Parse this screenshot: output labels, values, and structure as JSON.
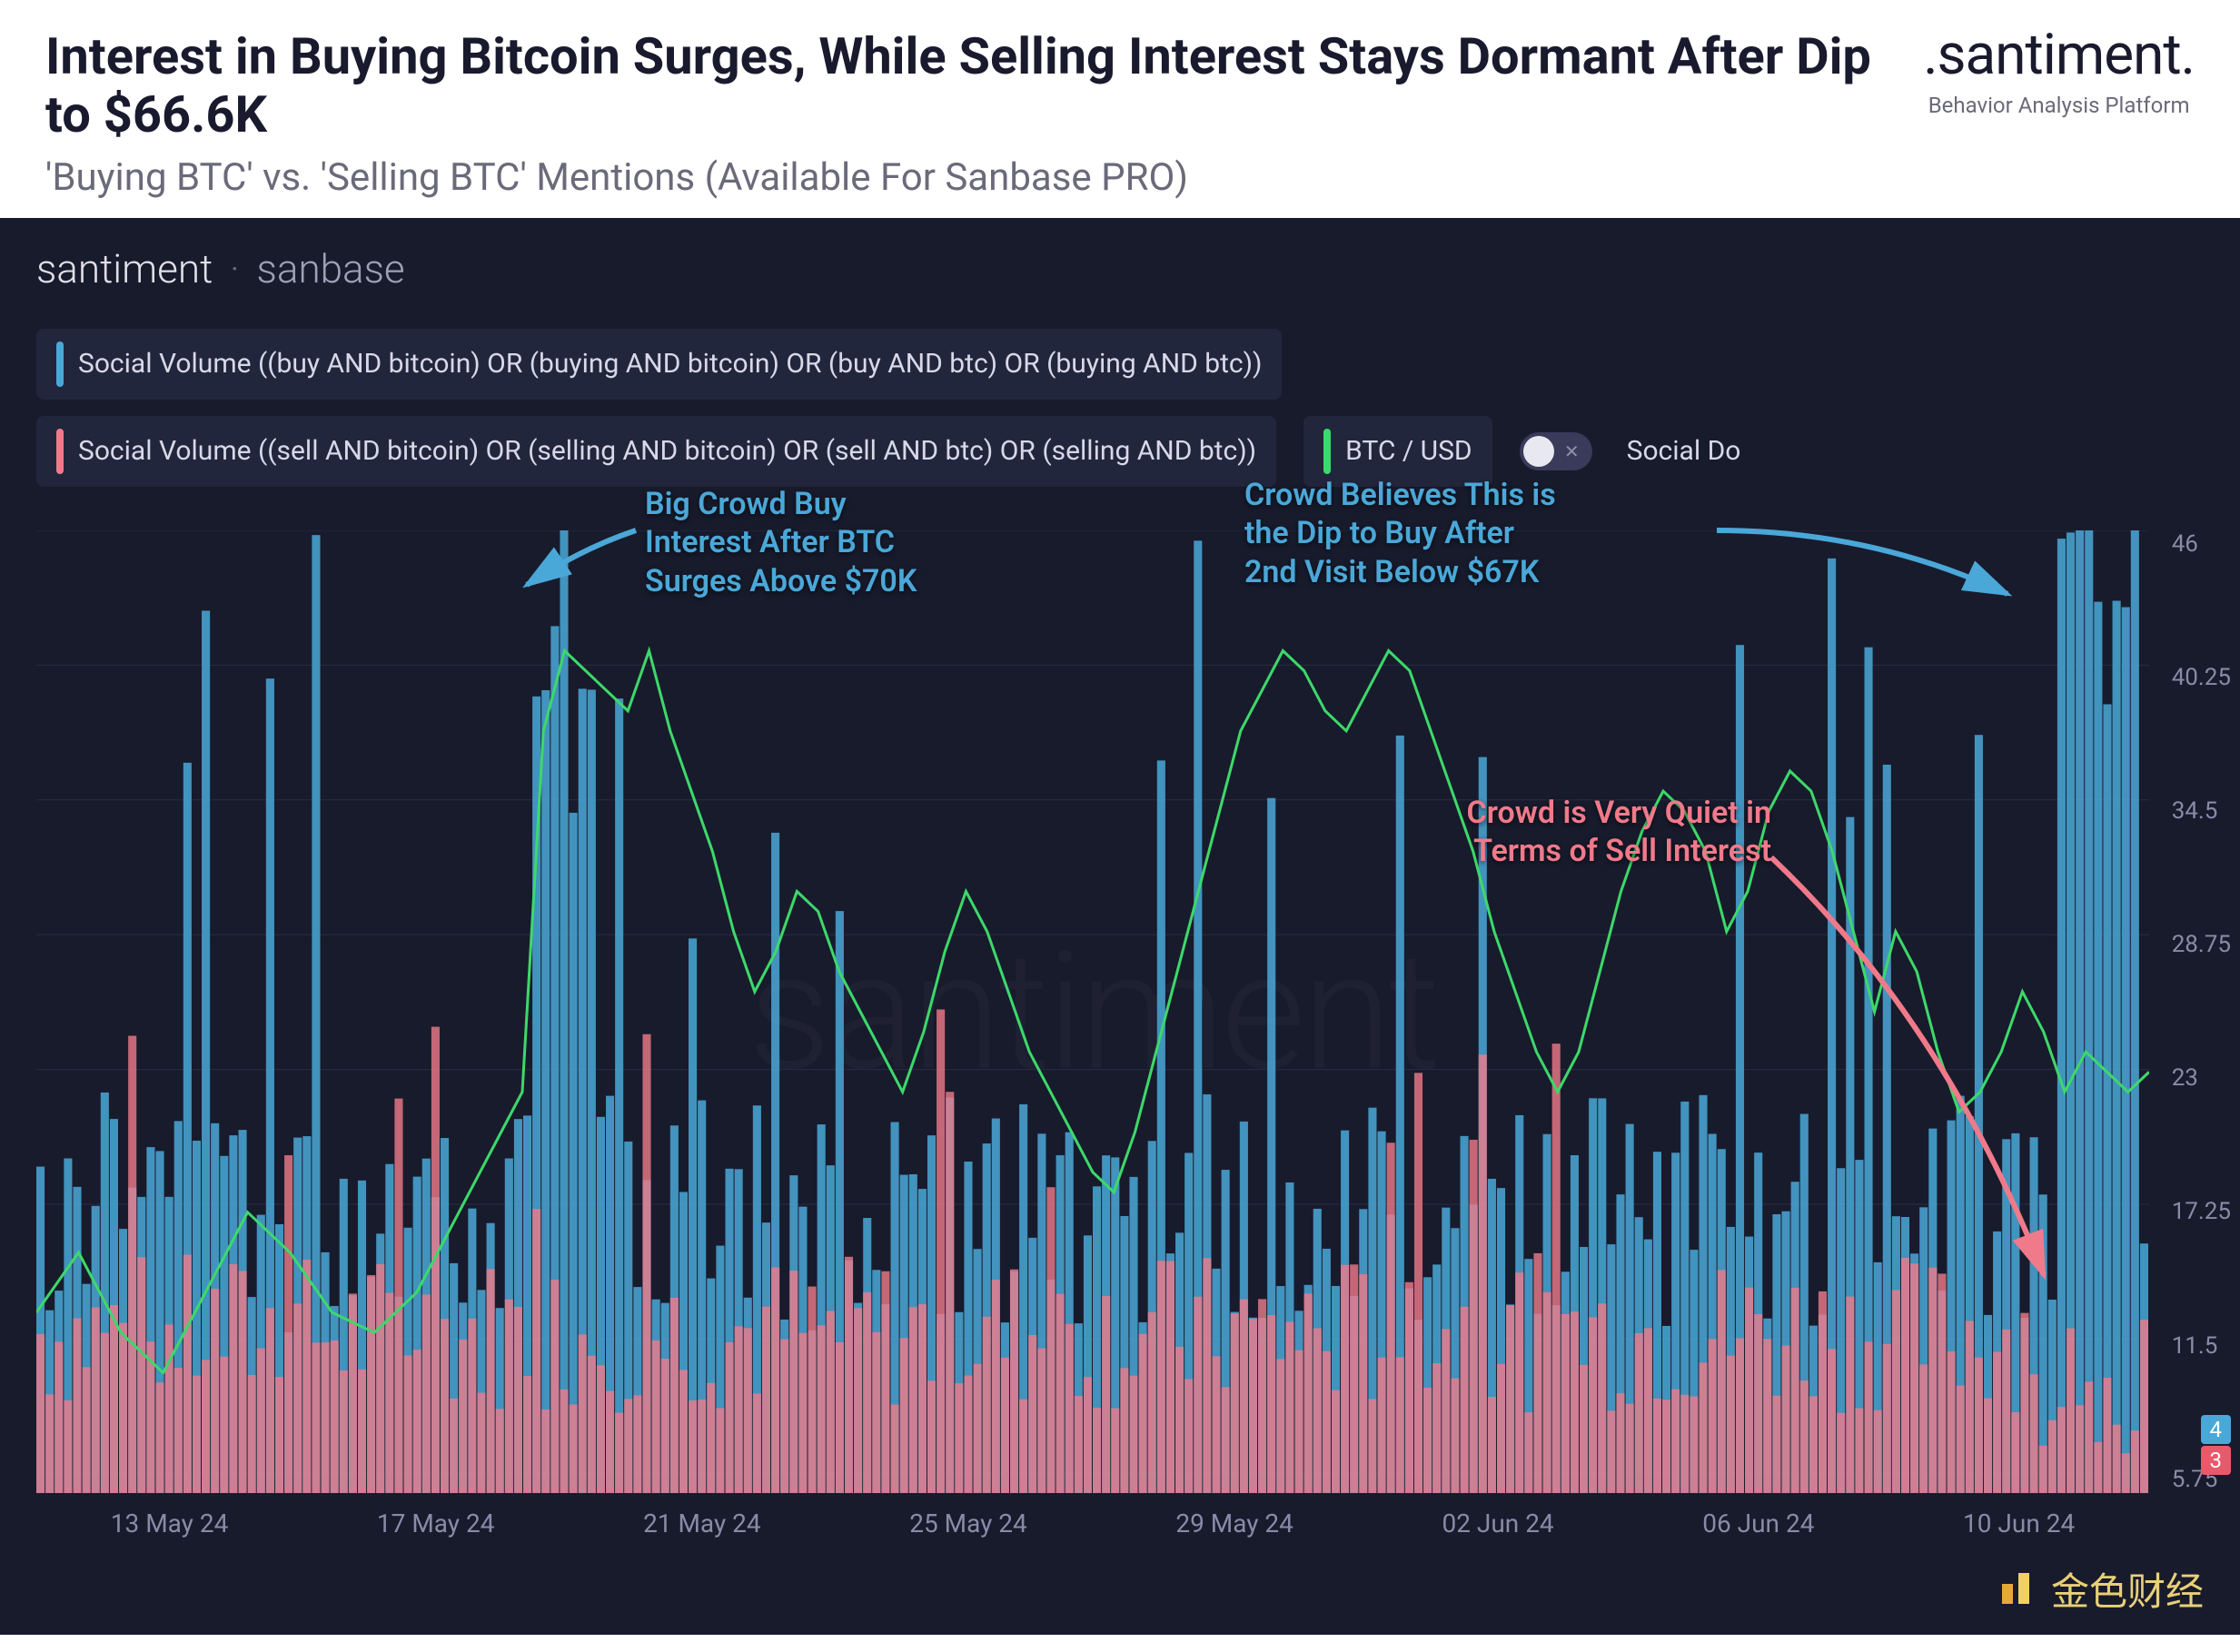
{
  "header": {
    "title": "Interest in Buying Bitcoin Surges, While Selling Interest Stays Dormant After Dip to $66.6K",
    "subtitle": "'Buying BTC' vs. 'Selling BTC' Mentions (Available For Sanbase PRO)",
    "logo": ".santiment.",
    "logo_sub": "Behavior Analysis Platform"
  },
  "chart_header": {
    "brand": "santiment",
    "brand_sub": "sanbase"
  },
  "legend": {
    "buy": {
      "label": "Social Volume ((buy AND bitcoin) OR (buying AND bitcoin) OR (buy AND btc) OR (buying AND btc))",
      "color": "#4aa8d8"
    },
    "sell": {
      "label": "Social Volume ((sell AND bitcoin) OR (selling AND bitcoin) OR (sell AND btc) OR (selling AND btc))",
      "color": "#f07a8a"
    },
    "price": {
      "label": "BTC / USD",
      "color": "#3dd86a"
    },
    "toggle_label": "Social Do"
  },
  "annotations": {
    "anno1": "Big Crowd Buy\nInterest After BTC\nSurges Above $70K",
    "anno2": "Crowd Believes This is\nthe Dip to Buy After\n2nd Visit Below $67K",
    "anno3": "Crowd is Very Quiet in\nTerms of Sell Interest"
  },
  "chart": {
    "type": "bar+line",
    "background_color": "#181b2c",
    "grid_color": "#2a2d42",
    "y_axis": {
      "ticks": [
        "46",
        "40.25",
        "34.5",
        "28.75",
        "23",
        "17.25",
        "11.5",
        "5.75"
      ],
      "badge_buy": "4",
      "badge_sell": "3",
      "ylim": [
        0,
        48
      ]
    },
    "x_axis": {
      "labels": [
        "13 May 24",
        "17 May 24",
        "21 May 24",
        "25 May 24",
        "29 May 24",
        "02 Jun 24",
        "06 Jun 24",
        "10 Jun 24"
      ]
    },
    "price_line": {
      "color": "#3dd86a",
      "width": 3,
      "points": [
        [
          0,
          9
        ],
        [
          2,
          12
        ],
        [
          4,
          8
        ],
        [
          6,
          6
        ],
        [
          8,
          10
        ],
        [
          10,
          14
        ],
        [
          12,
          12
        ],
        [
          14,
          9
        ],
        [
          16,
          8
        ],
        [
          18,
          10
        ],
        [
          20,
          14
        ],
        [
          22,
          18
        ],
        [
          23,
          20
        ],
        [
          24,
          38
        ],
        [
          25,
          42
        ],
        [
          26,
          41
        ],
        [
          27,
          40
        ],
        [
          28,
          39
        ],
        [
          29,
          42
        ],
        [
          30,
          38
        ],
        [
          31,
          35
        ],
        [
          32,
          32
        ],
        [
          33,
          28
        ],
        [
          34,
          25
        ],
        [
          35,
          27
        ],
        [
          36,
          30
        ],
        [
          37,
          29
        ],
        [
          38,
          26
        ],
        [
          39,
          24
        ],
        [
          40,
          22
        ],
        [
          41,
          20
        ],
        [
          42,
          23
        ],
        [
          43,
          27
        ],
        [
          44,
          30
        ],
        [
          45,
          28
        ],
        [
          46,
          25
        ],
        [
          47,
          22
        ],
        [
          48,
          20
        ],
        [
          49,
          18
        ],
        [
          50,
          16
        ],
        [
          51,
          15
        ],
        [
          52,
          18
        ],
        [
          53,
          22
        ],
        [
          54,
          26
        ],
        [
          55,
          30
        ],
        [
          56,
          34
        ],
        [
          57,
          38
        ],
        [
          58,
          40
        ],
        [
          59,
          42
        ],
        [
          60,
          41
        ],
        [
          61,
          39
        ],
        [
          62,
          38
        ],
        [
          63,
          40
        ],
        [
          64,
          42
        ],
        [
          65,
          41
        ],
        [
          66,
          38
        ],
        [
          67,
          35
        ],
        [
          68,
          32
        ],
        [
          69,
          28
        ],
        [
          70,
          25
        ],
        [
          71,
          22
        ],
        [
          72,
          20
        ],
        [
          73,
          22
        ],
        [
          74,
          26
        ],
        [
          75,
          30
        ],
        [
          76,
          33
        ],
        [
          77,
          35
        ],
        [
          78,
          34
        ],
        [
          79,
          32
        ],
        [
          80,
          28
        ],
        [
          81,
          30
        ],
        [
          82,
          34
        ],
        [
          83,
          36
        ],
        [
          84,
          35
        ],
        [
          85,
          32
        ],
        [
          86,
          28
        ],
        [
          87,
          24
        ],
        [
          88,
          28
        ],
        [
          89,
          26
        ],
        [
          90,
          22
        ],
        [
          91,
          19
        ],
        [
          92,
          20
        ],
        [
          93,
          22
        ],
        [
          94,
          25
        ],
        [
          95,
          23
        ],
        [
          96,
          20
        ],
        [
          97,
          22
        ],
        [
          98,
          21
        ],
        [
          99,
          20
        ],
        [
          100,
          21
        ]
      ]
    },
    "buy_bars": {
      "color": "#4aa8d8",
      "opacity": 0.85,
      "seed": 12,
      "count": 230
    },
    "sell_bars": {
      "color": "#f07a8a",
      "opacity": 0.8,
      "seed": 7,
      "count": 230
    }
  },
  "watermark": "santiment",
  "footer": {
    "text": "金色财经",
    "icon_color1": "#e8a838",
    "icon_color2": "#f0d060"
  }
}
